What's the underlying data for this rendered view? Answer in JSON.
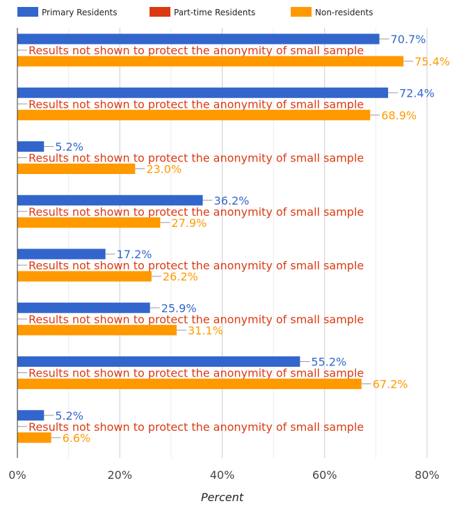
{
  "chart_data": {
    "type": "bar",
    "orientation": "horizontal",
    "title": "",
    "xlabel": "Percent",
    "ylabel": "",
    "xlim": [
      0,
      80
    ],
    "x_ticks": [
      "0%",
      "20%",
      "40%",
      "60%",
      "80%"
    ],
    "grid": true,
    "legend_position": "top",
    "categories": [
      "",
      "",
      "",
      "",
      "",
      "",
      "",
      ""
    ],
    "series": [
      {
        "name": "Primary Residents",
        "color": "#3366cc",
        "values": [
          70.7,
          72.4,
          5.2,
          36.2,
          17.2,
          25.9,
          55.2,
          5.2
        ],
        "labels": [
          "70.7%",
          "72.4%",
          "5.2%",
          "36.2%",
          "17.2%",
          "25.9%",
          "55.2%",
          "5.2%"
        ]
      },
      {
        "name": "Part-time Residents",
        "color": "#dc3912",
        "values": [
          null,
          null,
          null,
          null,
          null,
          null,
          null,
          null
        ],
        "labels": [
          "Results not shown to protect the anonymity of small sample",
          "Results not shown to protect the anonymity of small sample",
          "Results not shown to protect the anonymity of small sample",
          "Results not shown to protect the anonymity of small sample",
          "Results not shown to protect the anonymity of small sample",
          "Results not shown to protect the anonymity of small sample",
          "Results not shown to protect the anonymity of small sample",
          "Results not shown to protect the anonymity of small sample"
        ]
      },
      {
        "name": "Non-residents",
        "color": "#ff9900",
        "values": [
          75.4,
          68.9,
          23.0,
          27.9,
          26.2,
          31.1,
          67.2,
          6.6
        ],
        "labels": [
          "75.4%",
          "68.9%",
          "23.0%",
          "27.9%",
          "26.2%",
          "31.1%",
          "67.2%",
          "6.6%"
        ]
      }
    ]
  }
}
